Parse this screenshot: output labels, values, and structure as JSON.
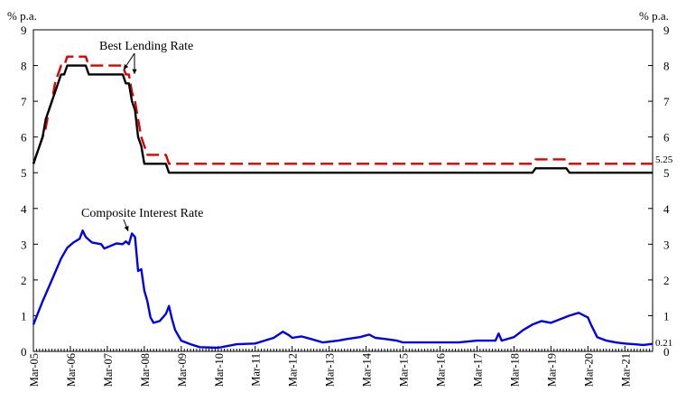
{
  "chart_data": {
    "type": "line",
    "y_unit_left": "% p.a.",
    "y_unit_right": "% p.a.",
    "ylim": [
      0,
      9
    ],
    "yticks": [
      0,
      1,
      2,
      3,
      4,
      5,
      6,
      7,
      8,
      9
    ],
    "x_range": [
      "2005-03",
      "2021-12"
    ],
    "xticks": [
      "Mar-05",
      "Mar-06",
      "Mar-07",
      "Mar-08",
      "Mar-09",
      "Mar-10",
      "Mar-11",
      "Mar-12",
      "Mar-13",
      "Mar-14",
      "Mar-15",
      "Mar-16",
      "Mar-17",
      "Mar-18",
      "Mar-19",
      "Mar-20",
      "Mar-21"
    ],
    "grid": false,
    "legend": "none",
    "annotations": [
      {
        "text": "Best Lending Rate"
      },
      {
        "text": "Composite Interest Rate"
      }
    ],
    "end_labels": [
      "5.25",
      "0.21"
    ],
    "series": [
      {
        "color": "#dd0000",
        "style": "dashed",
        "points": [
          [
            "2005-03",
            5.25
          ],
          [
            "2005-04",
            5.5
          ],
          [
            "2005-05",
            5.75
          ],
          [
            "2005-06",
            6.0
          ],
          [
            "2005-07",
            6.25
          ],
          [
            "2005-08",
            6.75
          ],
          [
            "2005-09",
            7.0
          ],
          [
            "2005-10",
            7.5
          ],
          [
            "2005-11",
            7.75
          ],
          [
            "2005-12",
            8.0
          ],
          [
            "2006-01",
            8.0
          ],
          [
            "2006-02",
            8.25
          ],
          [
            "2006-08",
            8.25
          ],
          [
            "2006-09",
            8.0
          ],
          [
            "2007-08",
            8.0
          ],
          [
            "2007-09",
            7.75
          ],
          [
            "2007-10",
            7.75
          ],
          [
            "2007-11",
            7.25
          ],
          [
            "2007-12",
            7.0
          ],
          [
            "2008-01",
            6.5
          ],
          [
            "2008-02",
            6.0
          ],
          [
            "2008-03",
            5.75
          ],
          [
            "2008-04",
            5.5
          ],
          [
            "2008-10",
            5.5
          ],
          [
            "2008-11",
            5.25
          ],
          [
            "2018-09",
            5.25
          ],
          [
            "2018-10",
            5.375
          ],
          [
            "2019-08",
            5.375
          ],
          [
            "2019-09",
            5.25
          ],
          [
            "2021-12",
            5.25
          ]
        ]
      },
      {
        "color": "#000000",
        "style": "solid",
        "points": [
          [
            "2005-03",
            5.25
          ],
          [
            "2005-04",
            5.5
          ],
          [
            "2005-05",
            5.75
          ],
          [
            "2005-06",
            6.0
          ],
          [
            "2005-07",
            6.5
          ],
          [
            "2005-08",
            6.75
          ],
          [
            "2005-09",
            7.0
          ],
          [
            "2005-10",
            7.25
          ],
          [
            "2005-11",
            7.5
          ],
          [
            "2005-12",
            7.75
          ],
          [
            "2006-01",
            7.75
          ],
          [
            "2006-02",
            8.0
          ],
          [
            "2006-08",
            8.0
          ],
          [
            "2006-09",
            7.75
          ],
          [
            "2007-08",
            7.75
          ],
          [
            "2007-09",
            7.5
          ],
          [
            "2007-10",
            7.5
          ],
          [
            "2007-11",
            7.0
          ],
          [
            "2007-12",
            6.75
          ],
          [
            "2008-01",
            6.0
          ],
          [
            "2008-02",
            5.75
          ],
          [
            "2008-03",
            5.25
          ],
          [
            "2008-10",
            5.25
          ],
          [
            "2008-11",
            5.0
          ],
          [
            "2018-09",
            5.0
          ],
          [
            "2018-10",
            5.125
          ],
          [
            "2019-08",
            5.125
          ],
          [
            "2019-09",
            5.0
          ],
          [
            "2021-12",
            5.0
          ]
        ]
      },
      {
        "color": "#0000ee",
        "style": "solid",
        "points": [
          [
            "2005-03",
            0.75
          ],
          [
            "2005-06",
            1.4
          ],
          [
            "2005-09",
            2.0
          ],
          [
            "2005-12",
            2.6
          ],
          [
            "2006-02",
            2.9
          ],
          [
            "2006-04",
            3.05
          ],
          [
            "2006-06",
            3.15
          ],
          [
            "2006-07",
            3.38
          ],
          [
            "2006-08",
            3.2
          ],
          [
            "2006-10",
            3.05
          ],
          [
            "2007-01",
            3.0
          ],
          [
            "2007-02",
            2.88
          ],
          [
            "2007-04",
            2.95
          ],
          [
            "2007-06",
            3.02
          ],
          [
            "2007-08",
            3.0
          ],
          [
            "2007-09",
            3.08
          ],
          [
            "2007-10",
            3.0
          ],
          [
            "2007-11",
            3.3
          ],
          [
            "2007-12",
            3.2
          ],
          [
            "2008-01",
            2.25
          ],
          [
            "2008-02",
            2.3
          ],
          [
            "2008-03",
            1.7
          ],
          [
            "2008-04",
            1.4
          ],
          [
            "2008-05",
            0.95
          ],
          [
            "2008-06",
            0.8
          ],
          [
            "2008-08",
            0.85
          ],
          [
            "2008-10",
            1.05
          ],
          [
            "2008-11",
            1.27
          ],
          [
            "2008-12",
            0.9
          ],
          [
            "2009-01",
            0.6
          ],
          [
            "2009-03",
            0.3
          ],
          [
            "2009-06",
            0.2
          ],
          [
            "2009-09",
            0.12
          ],
          [
            "2010-03",
            0.1
          ],
          [
            "2010-06",
            0.15
          ],
          [
            "2010-09",
            0.2
          ],
          [
            "2011-03",
            0.22
          ],
          [
            "2011-06",
            0.3
          ],
          [
            "2011-09",
            0.38
          ],
          [
            "2011-12",
            0.55
          ],
          [
            "2012-02",
            0.45
          ],
          [
            "2012-03",
            0.38
          ],
          [
            "2012-06",
            0.42
          ],
          [
            "2012-09",
            0.35
          ],
          [
            "2013-01",
            0.25
          ],
          [
            "2013-06",
            0.3
          ],
          [
            "2013-09",
            0.35
          ],
          [
            "2014-01",
            0.4
          ],
          [
            "2014-04",
            0.47
          ],
          [
            "2014-06",
            0.38
          ],
          [
            "2014-09",
            0.35
          ],
          [
            "2015-01",
            0.3
          ],
          [
            "2015-03",
            0.25
          ],
          [
            "2016-03",
            0.25
          ],
          [
            "2016-09",
            0.25
          ],
          [
            "2017-03",
            0.3
          ],
          [
            "2017-09",
            0.3
          ],
          [
            "2017-10",
            0.5
          ],
          [
            "2017-11",
            0.3
          ],
          [
            "2018-03",
            0.4
          ],
          [
            "2018-06",
            0.6
          ],
          [
            "2018-09",
            0.75
          ],
          [
            "2018-12",
            0.85
          ],
          [
            "2019-03",
            0.8
          ],
          [
            "2019-06",
            0.9
          ],
          [
            "2019-09",
            1.0
          ],
          [
            "2019-12",
            1.08
          ],
          [
            "2020-03",
            0.95
          ],
          [
            "2020-04",
            0.75
          ],
          [
            "2020-06",
            0.4
          ],
          [
            "2020-09",
            0.3
          ],
          [
            "2020-12",
            0.25
          ],
          [
            "2021-03",
            0.22
          ],
          [
            "2021-06",
            0.2
          ],
          [
            "2021-09",
            0.18
          ],
          [
            "2021-12",
            0.21
          ]
        ]
      }
    ]
  }
}
